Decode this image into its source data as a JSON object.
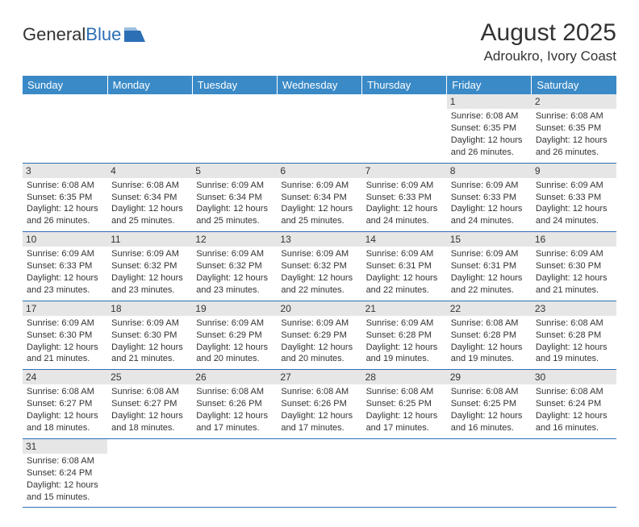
{
  "logo": {
    "part1": "General",
    "part2": "Blue"
  },
  "title": "August 2025",
  "location": "Adroukro, Ivory Coast",
  "colors": {
    "header_bg": "#3a8ac7",
    "header_text": "#ffffff",
    "border": "#2d6fb5",
    "daynum_bg": "#e6e6e6",
    "text": "#333333",
    "logo_blue": "#2d6fb5"
  },
  "day_headers": [
    "Sunday",
    "Monday",
    "Tuesday",
    "Wednesday",
    "Thursday",
    "Friday",
    "Saturday"
  ],
  "weeks": [
    [
      null,
      null,
      null,
      null,
      null,
      {
        "num": "1",
        "sunrise": "Sunrise: 6:08 AM",
        "sunset": "Sunset: 6:35 PM",
        "daylight": "Daylight: 12 hours and 26 minutes."
      },
      {
        "num": "2",
        "sunrise": "Sunrise: 6:08 AM",
        "sunset": "Sunset: 6:35 PM",
        "daylight": "Daylight: 12 hours and 26 minutes."
      }
    ],
    [
      {
        "num": "3",
        "sunrise": "Sunrise: 6:08 AM",
        "sunset": "Sunset: 6:35 PM",
        "daylight": "Daylight: 12 hours and 26 minutes."
      },
      {
        "num": "4",
        "sunrise": "Sunrise: 6:08 AM",
        "sunset": "Sunset: 6:34 PM",
        "daylight": "Daylight: 12 hours and 25 minutes."
      },
      {
        "num": "5",
        "sunrise": "Sunrise: 6:09 AM",
        "sunset": "Sunset: 6:34 PM",
        "daylight": "Daylight: 12 hours and 25 minutes."
      },
      {
        "num": "6",
        "sunrise": "Sunrise: 6:09 AM",
        "sunset": "Sunset: 6:34 PM",
        "daylight": "Daylight: 12 hours and 25 minutes."
      },
      {
        "num": "7",
        "sunrise": "Sunrise: 6:09 AM",
        "sunset": "Sunset: 6:33 PM",
        "daylight": "Daylight: 12 hours and 24 minutes."
      },
      {
        "num": "8",
        "sunrise": "Sunrise: 6:09 AM",
        "sunset": "Sunset: 6:33 PM",
        "daylight": "Daylight: 12 hours and 24 minutes."
      },
      {
        "num": "9",
        "sunrise": "Sunrise: 6:09 AM",
        "sunset": "Sunset: 6:33 PM",
        "daylight": "Daylight: 12 hours and 24 minutes."
      }
    ],
    [
      {
        "num": "10",
        "sunrise": "Sunrise: 6:09 AM",
        "sunset": "Sunset: 6:33 PM",
        "daylight": "Daylight: 12 hours and 23 minutes."
      },
      {
        "num": "11",
        "sunrise": "Sunrise: 6:09 AM",
        "sunset": "Sunset: 6:32 PM",
        "daylight": "Daylight: 12 hours and 23 minutes."
      },
      {
        "num": "12",
        "sunrise": "Sunrise: 6:09 AM",
        "sunset": "Sunset: 6:32 PM",
        "daylight": "Daylight: 12 hours and 23 minutes."
      },
      {
        "num": "13",
        "sunrise": "Sunrise: 6:09 AM",
        "sunset": "Sunset: 6:32 PM",
        "daylight": "Daylight: 12 hours and 22 minutes."
      },
      {
        "num": "14",
        "sunrise": "Sunrise: 6:09 AM",
        "sunset": "Sunset: 6:31 PM",
        "daylight": "Daylight: 12 hours and 22 minutes."
      },
      {
        "num": "15",
        "sunrise": "Sunrise: 6:09 AM",
        "sunset": "Sunset: 6:31 PM",
        "daylight": "Daylight: 12 hours and 22 minutes."
      },
      {
        "num": "16",
        "sunrise": "Sunrise: 6:09 AM",
        "sunset": "Sunset: 6:30 PM",
        "daylight": "Daylight: 12 hours and 21 minutes."
      }
    ],
    [
      {
        "num": "17",
        "sunrise": "Sunrise: 6:09 AM",
        "sunset": "Sunset: 6:30 PM",
        "daylight": "Daylight: 12 hours and 21 minutes."
      },
      {
        "num": "18",
        "sunrise": "Sunrise: 6:09 AM",
        "sunset": "Sunset: 6:30 PM",
        "daylight": "Daylight: 12 hours and 21 minutes."
      },
      {
        "num": "19",
        "sunrise": "Sunrise: 6:09 AM",
        "sunset": "Sunset: 6:29 PM",
        "daylight": "Daylight: 12 hours and 20 minutes."
      },
      {
        "num": "20",
        "sunrise": "Sunrise: 6:09 AM",
        "sunset": "Sunset: 6:29 PM",
        "daylight": "Daylight: 12 hours and 20 minutes."
      },
      {
        "num": "21",
        "sunrise": "Sunrise: 6:09 AM",
        "sunset": "Sunset: 6:28 PM",
        "daylight": "Daylight: 12 hours and 19 minutes."
      },
      {
        "num": "22",
        "sunrise": "Sunrise: 6:08 AM",
        "sunset": "Sunset: 6:28 PM",
        "daylight": "Daylight: 12 hours and 19 minutes."
      },
      {
        "num": "23",
        "sunrise": "Sunrise: 6:08 AM",
        "sunset": "Sunset: 6:28 PM",
        "daylight": "Daylight: 12 hours and 19 minutes."
      }
    ],
    [
      {
        "num": "24",
        "sunrise": "Sunrise: 6:08 AM",
        "sunset": "Sunset: 6:27 PM",
        "daylight": "Daylight: 12 hours and 18 minutes."
      },
      {
        "num": "25",
        "sunrise": "Sunrise: 6:08 AM",
        "sunset": "Sunset: 6:27 PM",
        "daylight": "Daylight: 12 hours and 18 minutes."
      },
      {
        "num": "26",
        "sunrise": "Sunrise: 6:08 AM",
        "sunset": "Sunset: 6:26 PM",
        "daylight": "Daylight: 12 hours and 17 minutes."
      },
      {
        "num": "27",
        "sunrise": "Sunrise: 6:08 AM",
        "sunset": "Sunset: 6:26 PM",
        "daylight": "Daylight: 12 hours and 17 minutes."
      },
      {
        "num": "28",
        "sunrise": "Sunrise: 6:08 AM",
        "sunset": "Sunset: 6:25 PM",
        "daylight": "Daylight: 12 hours and 17 minutes."
      },
      {
        "num": "29",
        "sunrise": "Sunrise: 6:08 AM",
        "sunset": "Sunset: 6:25 PM",
        "daylight": "Daylight: 12 hours and 16 minutes."
      },
      {
        "num": "30",
        "sunrise": "Sunrise: 6:08 AM",
        "sunset": "Sunset: 6:24 PM",
        "daylight": "Daylight: 12 hours and 16 minutes."
      }
    ],
    [
      {
        "num": "31",
        "sunrise": "Sunrise: 6:08 AM",
        "sunset": "Sunset: 6:24 PM",
        "daylight": "Daylight: 12 hours and 15 minutes."
      },
      null,
      null,
      null,
      null,
      null,
      null
    ]
  ]
}
